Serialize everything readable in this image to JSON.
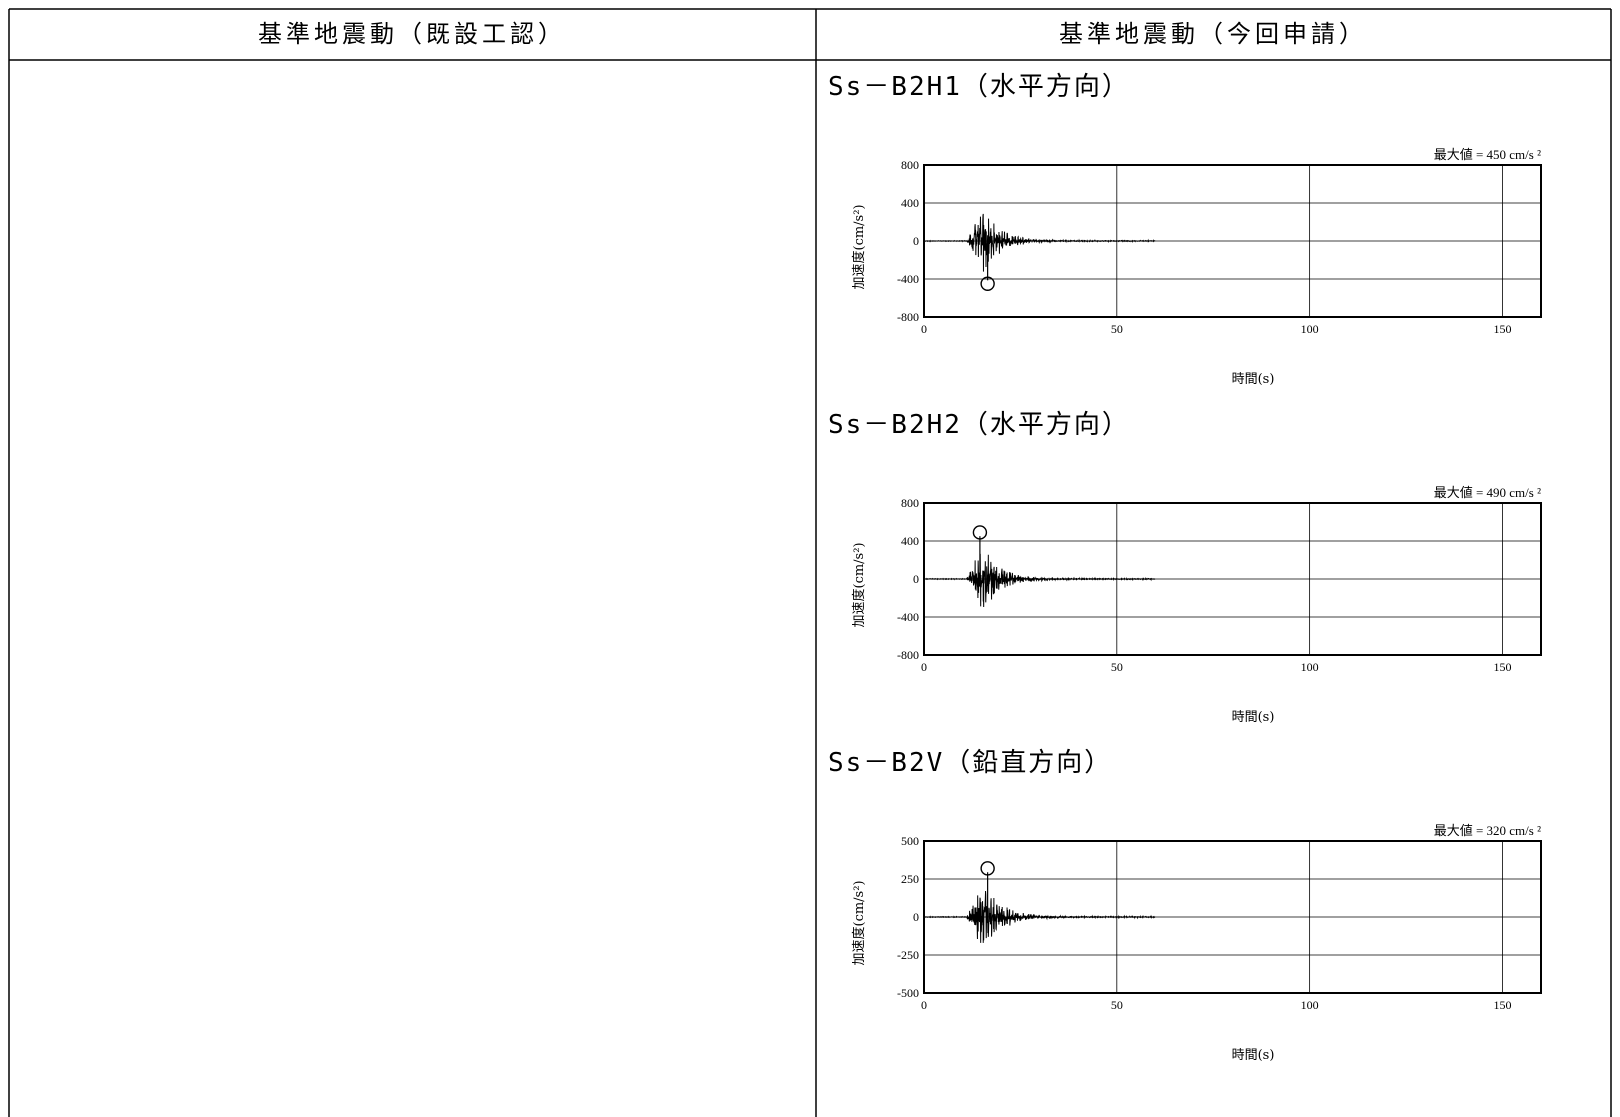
{
  "table": {
    "headers": [
      "基準地震動（既設工認）",
      "基準地震動（今回申請）"
    ]
  },
  "chart_data": [
    {
      "type": "line",
      "title": "Ss－B2H1（水平方向）",
      "xlabel": "時間(s)",
      "ylabel": "加速度(cm/s²)",
      "xlim": [
        0,
        160
      ],
      "ylim": [
        -800,
        800
      ],
      "xticks": [
        0,
        50,
        100,
        150
      ],
      "yticks": [
        800,
        400,
        0,
        -400,
        -800
      ],
      "max_label": "最大値 = 450 cm/s ²",
      "max_abs": 450,
      "peak": {
        "t": 16.5,
        "value": -450
      },
      "record_duration": 60,
      "onset": 11,
      "envelope_peak": 380,
      "grid": true
    },
    {
      "type": "line",
      "title": "Ss－B2H2（水平方向）",
      "xlabel": "時間(s)",
      "ylabel": "加速度(cm/s²)",
      "xlim": [
        0,
        160
      ],
      "ylim": [
        -800,
        800
      ],
      "xticks": [
        0,
        50,
        100,
        150
      ],
      "yticks": [
        800,
        400,
        0,
        -400,
        -800
      ],
      "max_label": "最大値 = 490 cm/s ²",
      "max_abs": 490,
      "peak": {
        "t": 14.5,
        "value": 490
      },
      "record_duration": 60,
      "onset": 11,
      "envelope_peak": 420,
      "grid": true
    },
    {
      "type": "line",
      "title": "Ss－B2V（鉛直方向）",
      "xlabel": "時間(s)",
      "ylabel": "加速度(cm/s²)",
      "xlim": [
        0,
        160
      ],
      "ylim": [
        -500,
        500
      ],
      "xticks": [
        0,
        50,
        100,
        150
      ],
      "yticks": [
        500,
        250,
        0,
        -250,
        -500
      ],
      "max_label": "最大値 = 320 cm/s ²",
      "max_abs": 320,
      "peak": {
        "t": 16.5,
        "value": 320
      },
      "record_duration": 60,
      "onset": 11,
      "envelope_peak": 280,
      "grid": true
    }
  ]
}
